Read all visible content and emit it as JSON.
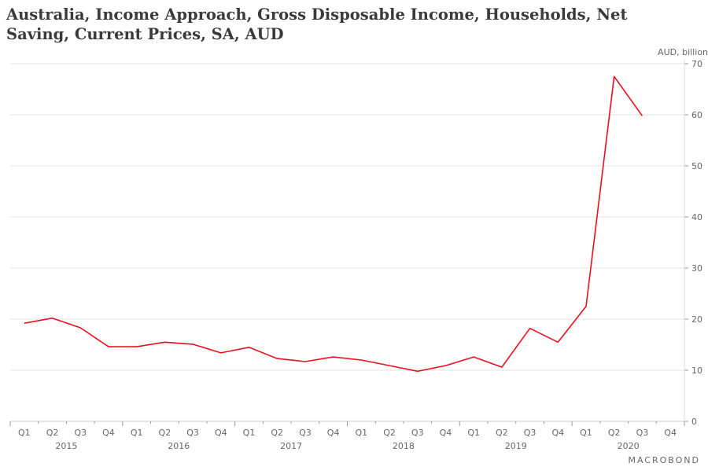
{
  "chart_data": {
    "type": "line",
    "title": "Australia, Income Approach, Gross Disposable Income, Households, Net Saving, Current Prices, SA, AUD",
    "ylabel": "AUD, billion",
    "xlabel": "",
    "ylim": [
      0,
      70
    ],
    "yticks": [
      0,
      10,
      20,
      30,
      40,
      50,
      60,
      70
    ],
    "grid": true,
    "years": [
      "2015",
      "2016",
      "2017",
      "2018",
      "2019",
      "2020"
    ],
    "quarters": [
      "Q1",
      "Q2",
      "Q3",
      "Q4"
    ],
    "series": [
      {
        "name": "Net Saving",
        "color": "#e8101e",
        "values": [
          19.2,
          20.2,
          18.3,
          14.6,
          14.6,
          15.5,
          15.1,
          13.4,
          14.5,
          12.3,
          11.7,
          12.6,
          12.0,
          10.9,
          9.8,
          10.9,
          12.6,
          10.6,
          18.2,
          15.5,
          22.5,
          67.5,
          59.8
        ]
      }
    ]
  },
  "brand": "MACROBOND"
}
